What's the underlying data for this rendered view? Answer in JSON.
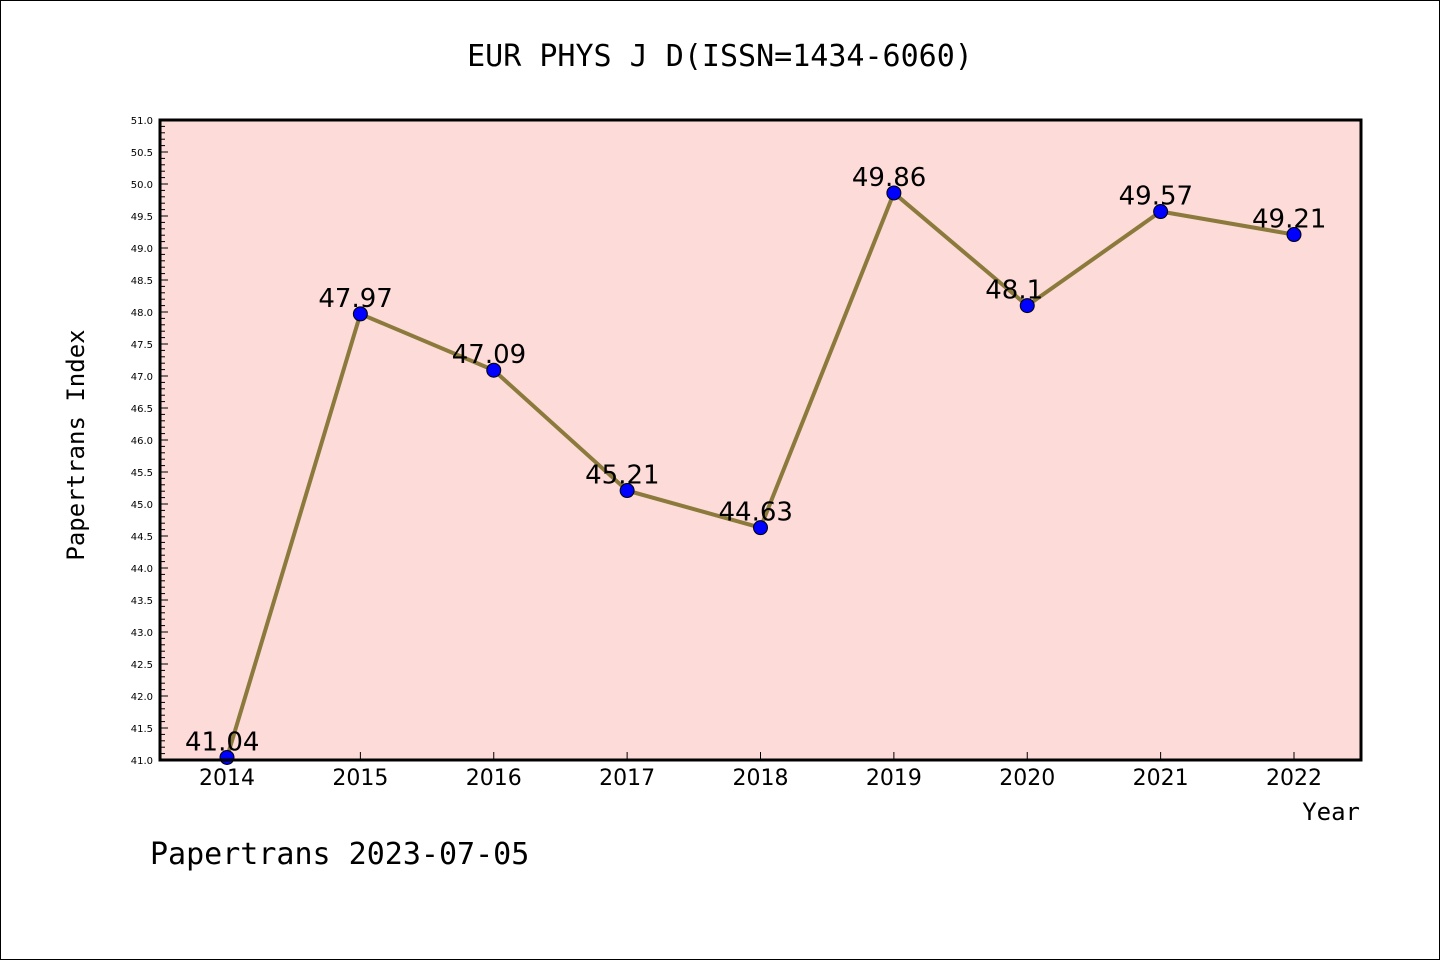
{
  "chart_data": {
    "type": "line",
    "title": "EUR PHYS J D(ISSN=1434-6060)",
    "xlabel": "Year",
    "ylabel": "Papertrans Index",
    "categories": [
      "2014",
      "2015",
      "2016",
      "2017",
      "2018",
      "2019",
      "2020",
      "2021",
      "2022"
    ],
    "series": [
      {
        "values": [
          41.04,
          47.97,
          47.09,
          45.21,
          44.63,
          49.86,
          48.1,
          49.57,
          49.21
        ],
        "labels": [
          "41.04",
          "47.97",
          "47.09",
          "45.21",
          "44.63",
          "49.86",
          "48.1",
          "49.57",
          "49.21"
        ]
      }
    ],
    "ylim": [
      41.0,
      51.0
    ],
    "yticks": [
      "41.0",
      "41.5",
      "42.0",
      "42.5",
      "43.0",
      "43.5",
      "44.0",
      "44.5",
      "45.0",
      "45.5",
      "46.0",
      "46.5",
      "47.0",
      "47.5",
      "48.0",
      "48.5",
      "49.0",
      "49.5",
      "50.0",
      "50.5",
      "51.0"
    ],
    "grid": false,
    "colors": {
      "plot_background": "#fddbd8",
      "line": "#8b7a3c",
      "marker": "#0000ff"
    }
  },
  "footer": "Papertrans 2023-07-05"
}
